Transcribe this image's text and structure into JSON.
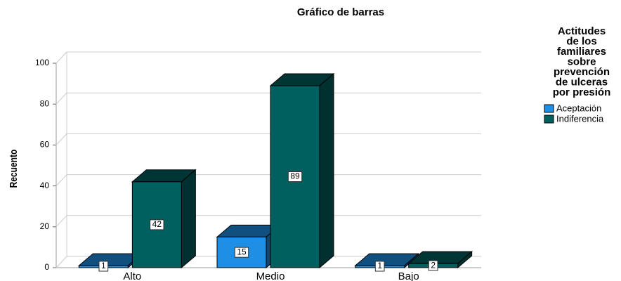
{
  "chart_data": {
    "type": "bar3d",
    "title": "Gráfico de barras",
    "y_label": "Recuento",
    "categories": [
      "Alto",
      "Medio",
      "Bajo"
    ],
    "series": [
      {
        "name": "Aceptación",
        "color": "#1f8fe6",
        "values": [
          1,
          15,
          1
        ]
      },
      {
        "name": "Indiferencia",
        "color": "#006060",
        "values": [
          42,
          89,
          2
        ]
      }
    ],
    "legend_title": [
      "Actitudes",
      "de los",
      "familiares",
      "sobre",
      "prevención",
      "de ulceras",
      "por presión"
    ],
    "legend_position": "right",
    "ylim": [
      0,
      100
    ],
    "yticks": [
      0,
      20,
      40,
      60,
      80,
      100
    ],
    "grid": true
  }
}
